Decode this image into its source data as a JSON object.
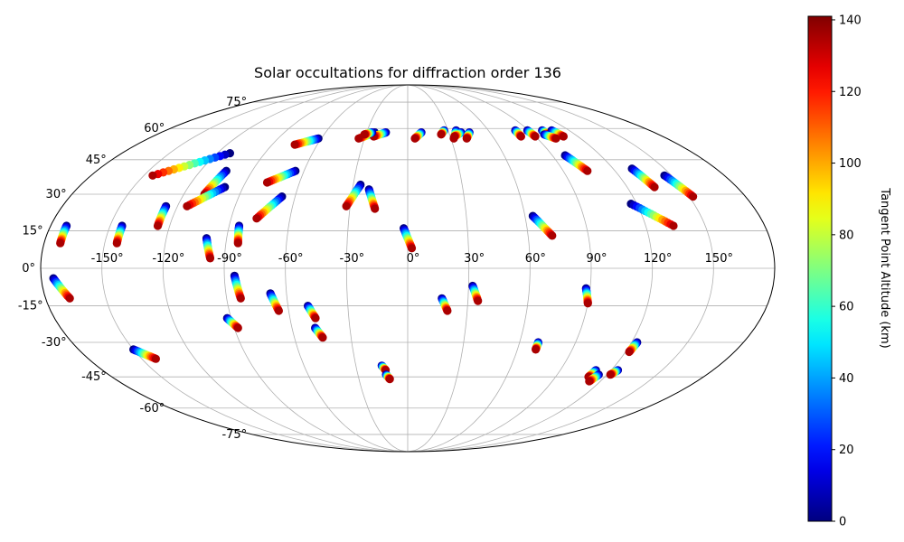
{
  "chart_data": {
    "type": "scatter",
    "projection": "mollweide",
    "title": "Solar occultations for diffraction order 136",
    "xlabel": "",
    "ylabel": "",
    "grid": true,
    "longitude_tick_labels": [
      "-150°",
      "-120°",
      "-90°",
      "-60°",
      "-30°",
      "0°",
      "30°",
      "60°",
      "90°",
      "120°",
      "150°"
    ],
    "latitude_tick_labels": [
      "75°",
      "60°",
      "45°",
      "30°",
      "15°",
      "0°",
      "-15°",
      "-30°",
      "-45°",
      "-60°",
      "-75°"
    ],
    "colorbar": {
      "label": "Tangent Point Altitude (km)",
      "range": [
        0,
        141
      ],
      "ticks": [
        "0",
        "20",
        "40",
        "60",
        "80",
        "100",
        "120",
        "140"
      ],
      "colormap": "jet"
    },
    "series": [
      {
        "name": "occultation tracks",
        "tracks": [
          {
            "start": [
              -172,
              17
            ],
            "end": [
              -172,
              10
            ],
            "alt_start": 0,
            "alt_end": 135
          },
          {
            "start": [
              -174,
              -4
            ],
            "end": [
              -168,
              -12
            ],
            "alt_start": 0,
            "alt_end": 135
          },
          {
            "start": [
              -150,
              -33
            ],
            "end": [
              -142,
              -37
            ],
            "alt_start": 0,
            "alt_end": 135
          },
          {
            "start": [
              -144,
              17
            ],
            "end": [
              -144,
              10
            ],
            "alt_start": 0,
            "alt_end": 135
          },
          {
            "start": [
              -126,
              25
            ],
            "end": [
              -126,
              17
            ],
            "alt_start": 0,
            "alt_end": 135
          },
          {
            "start": [
              -112,
              48
            ],
            "end": [
              -145,
              38
            ],
            "alt_start": 0,
            "alt_end": 135
          },
          {
            "start": [
              -105,
              40
            ],
            "end": [
              -109,
              30
            ],
            "alt_start": 0,
            "alt_end": 135
          },
          {
            "start": [
              -100,
              33
            ],
            "end": [
              -115,
              25
            ],
            "alt_start": 0,
            "alt_end": 135
          },
          {
            "start": [
              -100,
              12
            ],
            "end": [
              -97,
              4
            ],
            "alt_start": 0,
            "alt_end": 135
          },
          {
            "start": [
              -92,
              -20
            ],
            "end": [
              -88,
              -24
            ],
            "alt_start": 0,
            "alt_end": 135
          },
          {
            "start": [
              -85,
              17
            ],
            "end": [
              -84,
              10
            ],
            "alt_start": 0,
            "alt_end": 135
          },
          {
            "start": [
              -85,
              -3
            ],
            "end": [
              -83,
              -12
            ],
            "alt_start": 0,
            "alt_end": 135
          },
          {
            "start": [
              -62,
              55
            ],
            "end": [
              -75,
              52
            ],
            "alt_start": 0,
            "alt_end": 135
          },
          {
            "start": [
              -65,
              40
            ],
            "end": [
              -78,
              35
            ],
            "alt_start": 0,
            "alt_end": 135
          },
          {
            "start": [
              -67,
              29
            ],
            "end": [
              -77,
              20
            ],
            "alt_start": 0,
            "alt_end": 135
          },
          {
            "start": [
              -68,
              -10
            ],
            "end": [
              -65,
              -17
            ],
            "alt_start": 0,
            "alt_end": 135
          },
          {
            "start": [
              -50,
              -15
            ],
            "end": [
              -47,
              -20
            ],
            "alt_start": 0,
            "alt_end": 135
          },
          {
            "start": [
              -48,
              -24
            ],
            "end": [
              -45,
              -28
            ],
            "alt_start": 0,
            "alt_end": 135
          },
          {
            "start": [
              -24,
              58
            ],
            "end": [
              -34,
              55
            ],
            "alt_start": 0,
            "alt_end": 135
          },
          {
            "start": [
              -16,
              58
            ],
            "end": [
              -24,
              56
            ],
            "alt_start": 0,
            "alt_end": 135
          },
          {
            "start": [
              -26,
              58
            ],
            "end": [
              -31,
              57
            ],
            "alt_start": 0,
            "alt_end": 135
          },
          {
            "start": [
              -26,
              34
            ],
            "end": [
              -32,
              25
            ],
            "alt_start": 0,
            "alt_end": 135
          },
          {
            "start": [
              -21,
              32
            ],
            "end": [
              -17,
              24
            ],
            "alt_start": 0,
            "alt_end": 135
          },
          {
            "start": [
              -2,
              16
            ],
            "end": [
              2,
              8
            ],
            "alt_start": 0,
            "alt_end": 135
          },
          {
            "start": [
              -15,
              -40
            ],
            "end": [
              -13,
              -42
            ],
            "alt_start": 0,
            "alt_end": 135
          },
          {
            "start": [
              -13,
              -44
            ],
            "end": [
              -11,
              -46
            ],
            "alt_start": 0,
            "alt_end": 135
          },
          {
            "start": [
              10,
              58
            ],
            "end": [
              5,
              55
            ],
            "alt_start": 0,
            "alt_end": 135
          },
          {
            "start": [
              27,
              59
            ],
            "end": [
              24,
              57
            ],
            "alt_start": 0,
            "alt_end": 135
          },
          {
            "start": [
              36,
              59
            ],
            "end": [
              32,
              55
            ],
            "alt_start": 0,
            "alt_end": 135
          },
          {
            "start": [
              39,
              58
            ],
            "end": [
              33,
              56
            ],
            "alt_start": 0,
            "alt_end": 135
          },
          {
            "start": [
              45,
              58
            ],
            "end": [
              41,
              55
            ],
            "alt_start": 0,
            "alt_end": 135
          },
          {
            "start": [
              17,
              -12
            ],
            "end": [
              20,
              -17
            ],
            "alt_start": 0,
            "alt_end": 135
          },
          {
            "start": [
              32,
              -7
            ],
            "end": [
              35,
              -13
            ],
            "alt_start": 0,
            "alt_end": 135
          },
          {
            "start": [
              64,
              21
            ],
            "end": [
              72,
              13
            ],
            "alt_start": 0,
            "alt_end": 135
          },
          {
            "start": [
              70,
              -30
            ],
            "end": [
              70,
              -33
            ],
            "alt_start": 0,
            "alt_end": 135
          },
          {
            "start": [
              88,
              -8
            ],
            "end": [
              90,
              -14
            ],
            "alt_start": 0,
            "alt_end": 135
          },
          {
            "start": [
              80,
              59
            ],
            "end": [
              80,
              56
            ],
            "alt_start": 0,
            "alt_end": 135
          },
          {
            "start": [
              89,
              59
            ],
            "end": [
              90,
              56
            ],
            "alt_start": 0,
            "alt_end": 135
          },
          {
            "start": [
              100,
              59
            ],
            "end": [
              101,
              57
            ],
            "alt_start": 0,
            "alt_end": 135
          },
          {
            "start": [
              98,
              47
            ],
            "end": [
              104,
              40
            ],
            "alt_start": 0,
            "alt_end": 135
          },
          {
            "start": [
              107,
              59
            ],
            "end": [
              110,
              56
            ],
            "alt_start": 0,
            "alt_end": 135
          },
          {
            "start": [
              98,
              57
            ],
            "end": [
              103,
              55
            ],
            "alt_start": 0,
            "alt_end": 135
          },
          {
            "start": [
              131,
              41
            ],
            "end": [
              135,
              33
            ],
            "alt_start": 0,
            "alt_end": 135
          },
          {
            "start": [
              117,
              26
            ],
            "end": [
              134,
              17
            ],
            "alt_start": 0,
            "alt_end": 135
          },
          {
            "start": [
              146,
              38
            ],
            "end": [
              152,
              29
            ],
            "alt_start": 0,
            "alt_end": 135
          },
          {
            "start": [
              123,
              -30
            ],
            "end": [
              122,
              -34
            ],
            "alt_start": 0,
            "alt_end": 135
          },
          {
            "start": [
              124,
              -42
            ],
            "end": [
              122,
              -44
            ],
            "alt_start": 0,
            "alt_end": 135
          },
          {
            "start": [
              111,
              -42
            ],
            "end": [
              110,
              -45
            ],
            "alt_start": 0,
            "alt_end": 135
          },
          {
            "start": [
              115,
              -44
            ],
            "end": [
              113,
              -47
            ],
            "alt_start": 0,
            "alt_end": 135
          }
        ]
      }
    ]
  }
}
